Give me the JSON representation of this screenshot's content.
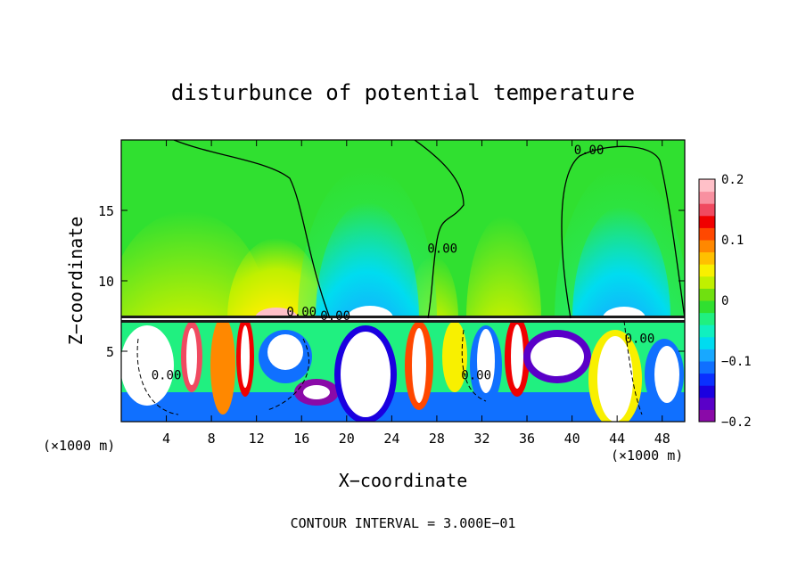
{
  "chart_data": {
    "type": "heatmap",
    "title": "disturbunce of potential temperature",
    "xlabel": "X−coordinate",
    "ylabel": "Z−coordinate",
    "x_unit_left": "(×1000 m)",
    "x_unit_right": "(×1000 m)",
    "footer": "CONTOUR INTERVAL = 3.000E−01",
    "xlim": [
      0,
      50
    ],
    "ylim": [
      0,
      20
    ],
    "x_ticks": [
      4,
      8,
      12,
      16,
      20,
      24,
      28,
      32,
      36,
      40,
      44,
      48
    ],
    "x_tick_labels": [
      "4",
      "8",
      "12",
      "16",
      "20",
      "24",
      "28",
      "32",
      "36",
      "40",
      "44",
      "48"
    ],
    "y_ticks": [
      5,
      10,
      15
    ],
    "y_tick_labels": [
      "5",
      "10",
      "15"
    ],
    "colorbar": {
      "range": [
        -0.2,
        0.2
      ],
      "tick_values": [
        0.2,
        0.1,
        0,
        -0.1,
        -0.2
      ],
      "tick_labels": [
        "0.2",
        "0.1",
        "0",
        "−0.1",
        "−0.2"
      ],
      "colors": [
        "#8a0aa8",
        "#5a00c8",
        "#1a00e0",
        "#0a30ff",
        "#1070ff",
        "#18a8ff",
        "#00dcf0",
        "#10f0c0",
        "#20f080",
        "#30e030",
        "#70e010",
        "#c0f000",
        "#f8f000",
        "#ffc000",
        "#ff8800",
        "#ff4800",
        "#f00000",
        "#f04a60",
        "#f890a0",
        "#ffc0c8"
      ]
    },
    "contour_labels": [
      {
        "text": "0.00",
        "x": 41.5,
        "z": 19
      },
      {
        "text": "0.00",
        "x": 28.5,
        "z": 12
      },
      {
        "text": "0.00",
        "x": 16,
        "z": 7.5
      },
      {
        "text": "0.00",
        "x": 19,
        "z": 7.2
      },
      {
        "text": "0.00",
        "x": 4,
        "z": 3
      },
      {
        "text": "0.00",
        "x": 31.5,
        "z": 3
      },
      {
        "text": "0.00",
        "x": 46,
        "z": 5.6
      }
    ]
  }
}
